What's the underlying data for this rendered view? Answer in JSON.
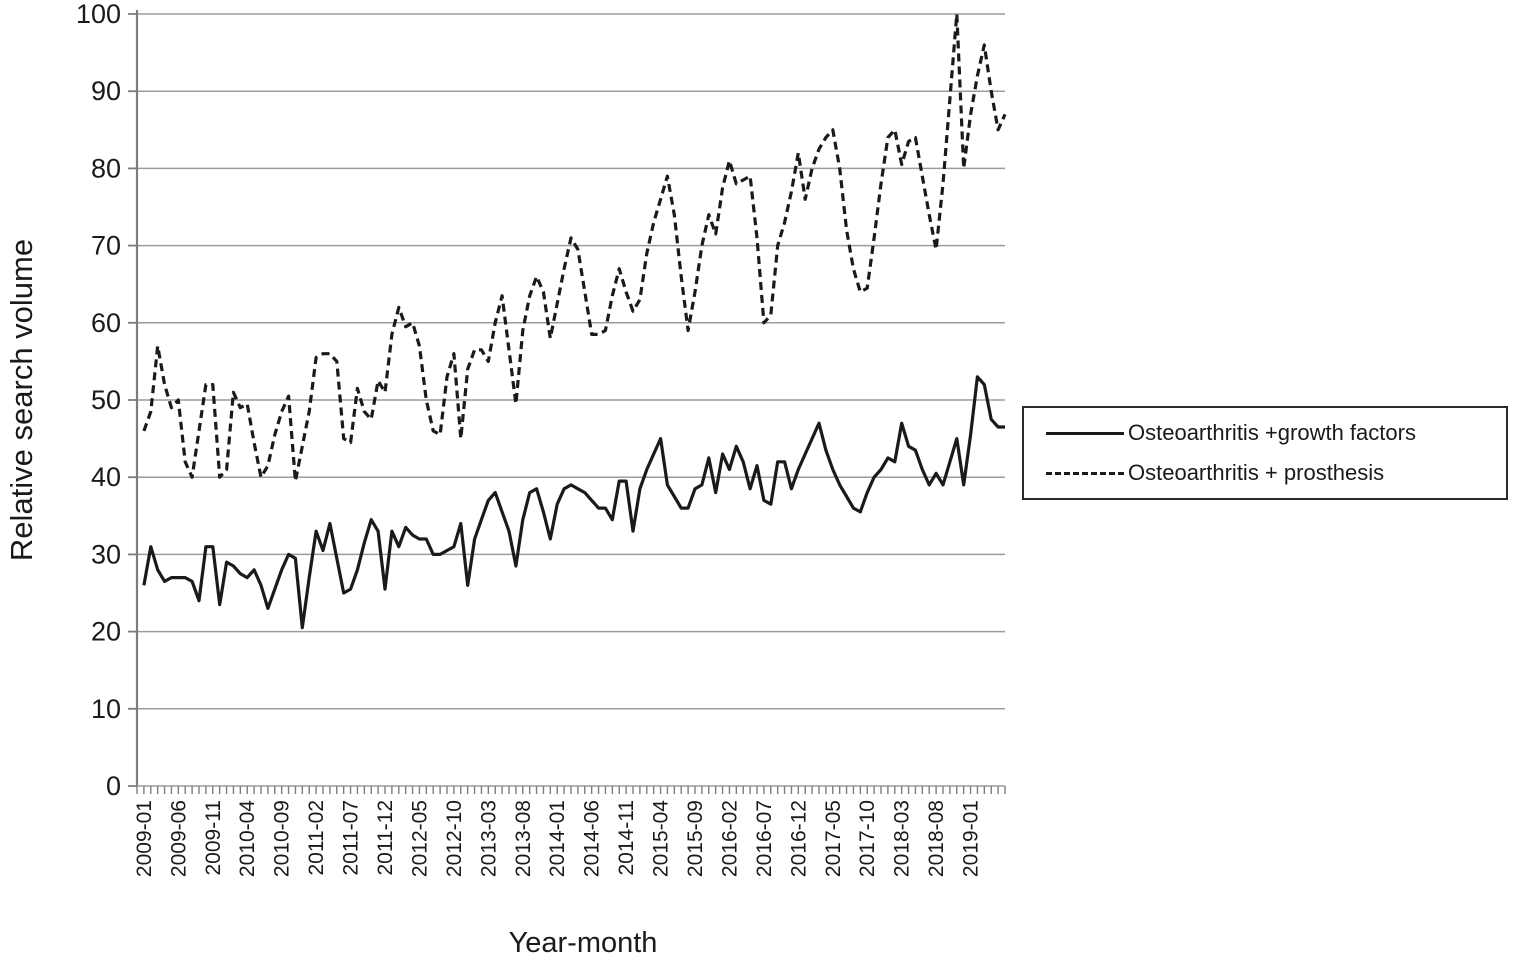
{
  "chart_data": {
    "type": "line",
    "title": "",
    "xlabel": "Year-month",
    "ylabel": "Relative search volume",
    "ylim": [
      0,
      100
    ],
    "yticks": [
      0,
      10,
      20,
      30,
      40,
      50,
      60,
      70,
      80,
      90,
      100
    ],
    "grid": "horizontal-only",
    "legend_position": "right",
    "xtick_label_every": 5,
    "xtick_labels_visible": [
      "2009-01",
      "2009-06",
      "2009-11",
      "2010-04",
      "2010-09",
      "2011-02",
      "2011-07",
      "2011-12",
      "2012-05",
      "2012-10",
      "2013-03",
      "2013-08",
      "2014-01",
      "2014-06",
      "2014-11",
      "2015-04",
      "2015-09",
      "2016-02",
      "2016-07",
      "2016-12",
      "2017-05",
      "2017-10",
      "2018-03",
      "2018-08",
      "2019-01"
    ],
    "x": [
      "2009-01",
      "2009-02",
      "2009-03",
      "2009-04",
      "2009-05",
      "2009-06",
      "2009-07",
      "2009-08",
      "2009-09",
      "2009-10",
      "2009-11",
      "2009-12",
      "2010-01",
      "2010-02",
      "2010-03",
      "2010-04",
      "2010-05",
      "2010-06",
      "2010-07",
      "2010-08",
      "2010-09",
      "2010-10",
      "2010-11",
      "2010-12",
      "2011-01",
      "2011-02",
      "2011-03",
      "2011-04",
      "2011-05",
      "2011-06",
      "2011-07",
      "2011-08",
      "2011-09",
      "2011-10",
      "2011-11",
      "2011-12",
      "2012-01",
      "2012-02",
      "2012-03",
      "2012-04",
      "2012-05",
      "2012-06",
      "2012-07",
      "2012-08",
      "2012-09",
      "2012-10",
      "2012-11",
      "2012-12",
      "2013-01",
      "2013-02",
      "2013-03",
      "2013-04",
      "2013-05",
      "2013-06",
      "2013-07",
      "2013-08",
      "2013-09",
      "2013-10",
      "2013-11",
      "2013-12",
      "2014-01",
      "2014-02",
      "2014-03",
      "2014-04",
      "2014-05",
      "2014-06",
      "2014-07",
      "2014-08",
      "2014-09",
      "2014-10",
      "2014-11",
      "2014-12",
      "2015-01",
      "2015-02",
      "2015-03",
      "2015-04",
      "2015-05",
      "2015-06",
      "2015-07",
      "2015-08",
      "2015-09",
      "2015-10",
      "2015-11",
      "2015-12",
      "2016-01",
      "2016-02",
      "2016-03",
      "2016-04",
      "2016-05",
      "2016-06",
      "2016-07",
      "2016-08",
      "2016-09",
      "2016-10",
      "2016-11",
      "2016-12",
      "2017-01",
      "2017-02",
      "2017-03",
      "2017-04",
      "2017-05",
      "2017-06",
      "2017-07",
      "2017-08",
      "2017-09",
      "2017-10",
      "2017-11",
      "2017-12",
      "2018-01",
      "2018-02",
      "2018-03",
      "2018-04",
      "2018-05",
      "2018-06",
      "2018-07",
      "2018-08",
      "2018-09",
      "2018-10",
      "2018-11",
      "2018-12",
      "2019-01",
      "2019-02",
      "2019-03",
      "2019-04",
      "2019-05",
      "2019-06"
    ],
    "series": [
      {
        "name": "Osteoarthritis +growth factors",
        "style": "solid",
        "values": [
          26,
          31,
          28,
          26.5,
          27,
          27,
          27,
          26.5,
          24,
          31,
          31,
          23.5,
          29,
          28.5,
          27.5,
          27,
          28,
          26,
          23,
          25.5,
          28,
          30,
          29.5,
          20.5,
          27,
          33,
          30.5,
          34,
          29.5,
          25,
          25.5,
          28,
          31.5,
          34.5,
          33,
          25.5,
          33,
          31,
          33.5,
          32.5,
          32,
          32,
          30,
          30,
          30.5,
          31,
          34,
          26,
          32,
          34.5,
          37,
          38,
          35.5,
          33,
          28.5,
          34.5,
          38,
          38.5,
          35.5,
          32,
          36.5,
          38.5,
          39,
          38.5,
          38,
          37,
          36,
          36,
          34.5,
          39.5,
          39.5,
          33,
          38.5,
          41,
          43,
          45,
          39,
          37.5,
          36,
          36,
          38.5,
          39,
          42.5,
          38,
          43,
          41,
          44,
          42,
          38.5,
          41.5,
          37,
          36.5,
          42,
          42,
          38.5,
          41,
          43,
          45,
          47,
          43.5,
          41,
          39,
          37.5,
          36,
          35.5,
          38,
          40,
          41,
          42.5,
          42,
          47,
          44,
          43.5,
          41,
          39,
          40.5,
          39,
          42,
          45,
          39,
          45.5,
          53,
          52,
          47.5,
          46.5,
          46.5
        ]
      },
      {
        "name": "Osteoarthritis + prosthesis",
        "style": "dashed",
        "values": [
          46,
          48.5,
          57,
          52,
          49,
          50,
          42,
          40,
          46,
          52,
          52,
          40,
          41,
          51,
          49,
          49.5,
          44.5,
          40,
          41.5,
          45.5,
          48.5,
          50.5,
          39.5,
          44,
          48.5,
          55.5,
          56,
          56,
          55,
          45,
          44.5,
          51.5,
          48.5,
          47.5,
          52.5,
          51,
          58.5,
          62,
          59.5,
          60,
          57,
          50,
          46,
          45.5,
          53,
          56,
          45,
          54,
          56.5,
          56.5,
          55,
          60,
          63.5,
          56.5,
          49.5,
          59,
          63.5,
          66,
          64,
          58,
          62.5,
          67,
          71,
          69.5,
          64,
          58.5,
          58.5,
          59,
          63.5,
          67,
          64,
          61.5,
          63,
          69,
          73,
          76,
          79,
          74,
          66,
          59,
          64,
          70,
          74,
          71.5,
          77.5,
          81,
          78,
          78.5,
          79,
          71,
          60,
          61,
          70,
          73,
          77,
          82,
          76,
          80,
          82.5,
          84,
          85,
          80,
          72,
          67,
          64,
          64.5,
          71,
          78,
          84,
          85,
          80.5,
          83.5,
          84,
          79,
          74,
          69.5,
          78,
          89,
          100,
          80,
          87,
          92,
          96,
          90,
          85,
          87
        ]
      }
    ],
    "colors": {
      "line": "#1a1a1a",
      "grid": "#9c9c9c",
      "axis": "#7d7d7d",
      "text": "#1a1a1a",
      "background": "#ffffff"
    }
  },
  "legend": {
    "items": [
      {
        "label": "Osteoarthritis +growth factors",
        "style": "solid"
      },
      {
        "label": "Osteoarthritis + prosthesis",
        "style": "dashed"
      }
    ]
  }
}
